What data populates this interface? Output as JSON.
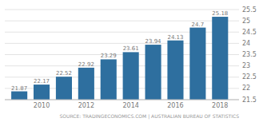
{
  "chart_data": {
    "type": "bar",
    "x": [
      2009,
      2010,
      2011,
      2012,
      2013,
      2014,
      2015,
      2016,
      2017,
      2018
    ],
    "values": [
      21.87,
      22.17,
      22.52,
      22.92,
      23.29,
      23.61,
      23.94,
      24.13,
      24.7,
      25.18
    ],
    "color": "#2E6F9F",
    "data_labels": true,
    "xlim": [
      2008.35,
      2018.85
    ],
    "xticks": [
      2010,
      2012,
      2014,
      2016,
      2018
    ],
    "ylim": [
      21.5,
      25.5
    ],
    "yticks": [
      21.5,
      22,
      22.5,
      23,
      23.5,
      24,
      24.5,
      25,
      25.5
    ],
    "grid": true,
    "annotations": [
      "SOURCE: TRADINGECONOMICS.COM | AUSTRALIAN BUREAU OF STATISTICS"
    ]
  }
}
